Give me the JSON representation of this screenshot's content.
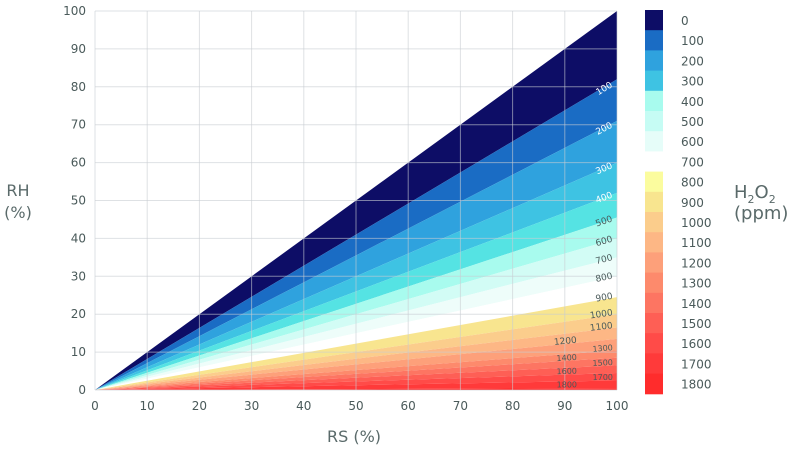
{
  "chart_data": {
    "type": "area",
    "title": "",
    "xlabel": "RS (%)",
    "ylabel_line1": "RH",
    "ylabel_line2": "(%)",
    "xlim": [
      0,
      100
    ],
    "ylim": [
      0,
      100
    ],
    "xticks": [
      "0",
      "10",
      "20",
      "30",
      "40",
      "50",
      "60",
      "70",
      "80",
      "90",
      "100"
    ],
    "yticks": [
      "0",
      "10",
      "20",
      "30",
      "40",
      "50",
      "60",
      "70",
      "80",
      "90",
      "100"
    ],
    "grid": true,
    "description_of_model": "contour bands are straight lines from origin; boundaries given as RH at RS=100",
    "band_boundaries_rh_at_rs100": [
      100,
      82,
      71,
      60,
      52,
      45.5,
      40,
      35,
      30,
      24.5,
      20,
      16.5,
      13.5,
      10.5,
      8.5,
      6.5,
      4.5,
      2.5,
      0.5,
      0
    ],
    "band_colors": [
      "#0d0d66",
      "#1a6cc4",
      "#2fa2de",
      "#3ec3e3",
      "#55e3e3",
      "#a8fbee",
      "#d2fcf5",
      "#eefdfa",
      "#ffffff",
      "#f8e58f",
      "#fbcd8c",
      "#fdb785",
      "#fda07a",
      "#fd8a6c",
      "#fd7562",
      "#fe5f55",
      "#ff4b48",
      "#ff3a3a",
      "#ff2c2c"
    ],
    "contour_labels": [
      "100",
      "200",
      "300",
      "400",
      "500",
      "600",
      "700",
      "800",
      "900",
      "1000",
      "1100",
      "1200",
      "1300",
      "1400",
      "1500",
      "1600",
      "1700",
      "1800"
    ],
    "colorbar": {
      "title_main": "H",
      "title_sub1": "2",
      "title_mid": "O",
      "title_sub2": "2",
      "unit": "(ppm)",
      "levels": [
        "0",
        "100",
        "200",
        "300",
        "400",
        "500",
        "600",
        "700",
        "800",
        "900",
        "1000",
        "1100",
        "1200",
        "1300",
        "1400",
        "1500",
        "1600",
        "1700",
        "1800"
      ],
      "colors": [
        "#0d0d66",
        "#1a6cc4",
        "#2fa2de",
        "#3ec3e3",
        "#a8fbee",
        "#c6fcf4",
        "#e6fdf9",
        "#ffffff",
        "#fbfc9e",
        "#f8e58f",
        "#fbcd8c",
        "#fdb785",
        "#fda07a",
        "#fd8a6c",
        "#fd7562",
        "#fe5f55",
        "#ff4b48",
        "#ff3a3a",
        "#ff2c2c"
      ]
    }
  }
}
